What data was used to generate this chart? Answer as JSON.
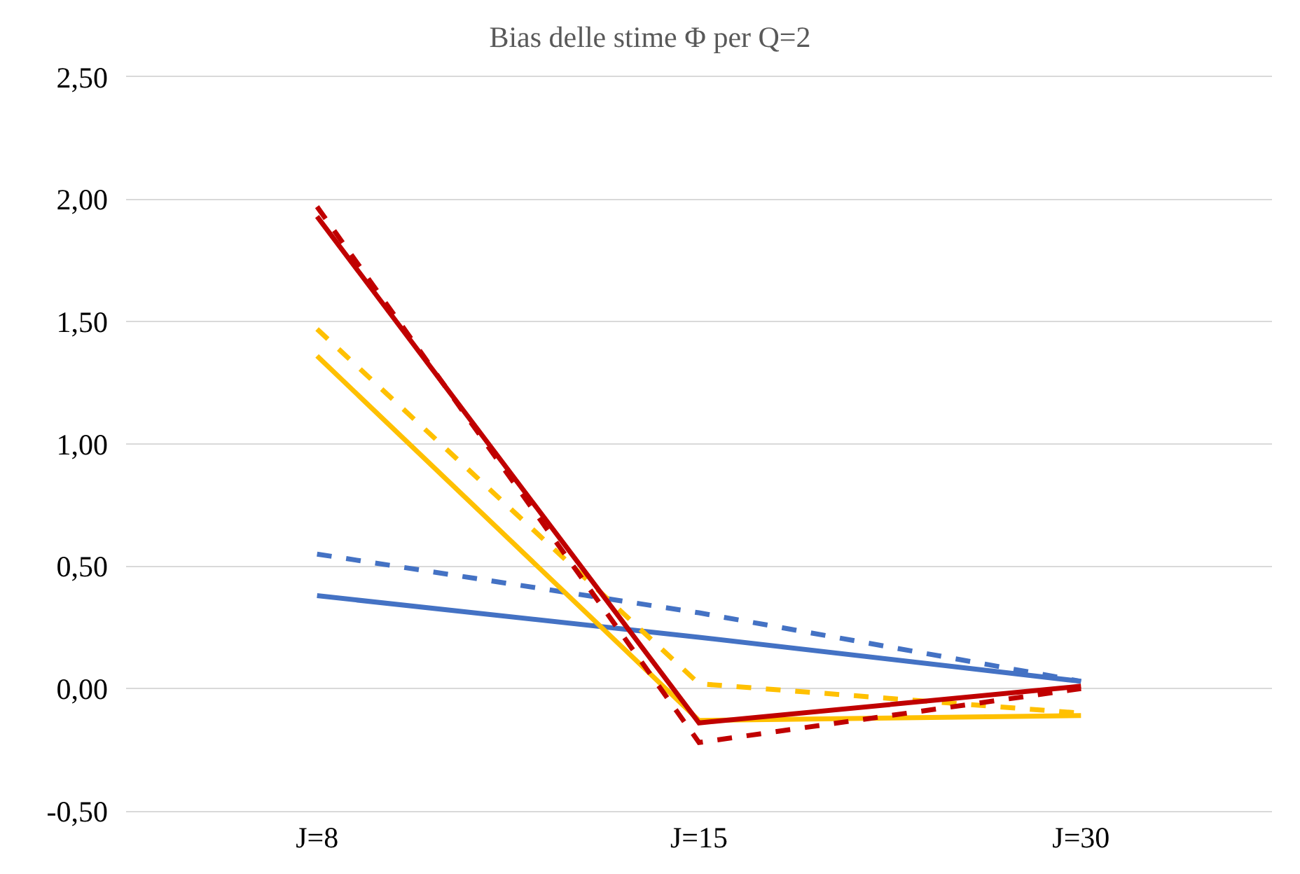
{
  "chart_data": {
    "type": "line",
    "title": "Bias delle stime Φ per Q=2",
    "categories": [
      "J=8",
      "J=15",
      "J=30"
    ],
    "series": [
      {
        "color": "#4472c4",
        "line_style": "solid",
        "values": [
          0.38,
          0.21,
          0.03
        ]
      },
      {
        "color": "#4472c4",
        "line_style": "dashed",
        "values": [
          0.55,
          0.31,
          0.03
        ]
      },
      {
        "color": "#ffc000",
        "line_style": "solid",
        "values": [
          1.36,
          -0.13,
          -0.11
        ]
      },
      {
        "color": "#ffc000",
        "line_style": "dashed",
        "values": [
          1.47,
          0.02,
          -0.1
        ]
      },
      {
        "color": "#c00000",
        "line_style": "solid",
        "values": [
          1.93,
          -0.14,
          0.01
        ]
      },
      {
        "color": "#c00000",
        "line_style": "dashed",
        "values": [
          1.97,
          -0.22,
          0.0
        ]
      }
    ],
    "ylim": [
      -0.5,
      2.5
    ],
    "yticks": [
      {
        "value": -0.5,
        "label": "-0,50"
      },
      {
        "value": 0,
        "label": "0,00"
      },
      {
        "value": 0.5,
        "label": "0,50"
      },
      {
        "value": 1,
        "label": "1,00"
      },
      {
        "value": 1.5,
        "label": "1,50"
      },
      {
        "value": 2,
        "label": "2,00"
      },
      {
        "value": 2.5,
        "label": "2,50"
      }
    ],
    "grid": "y",
    "marker": "none"
  }
}
